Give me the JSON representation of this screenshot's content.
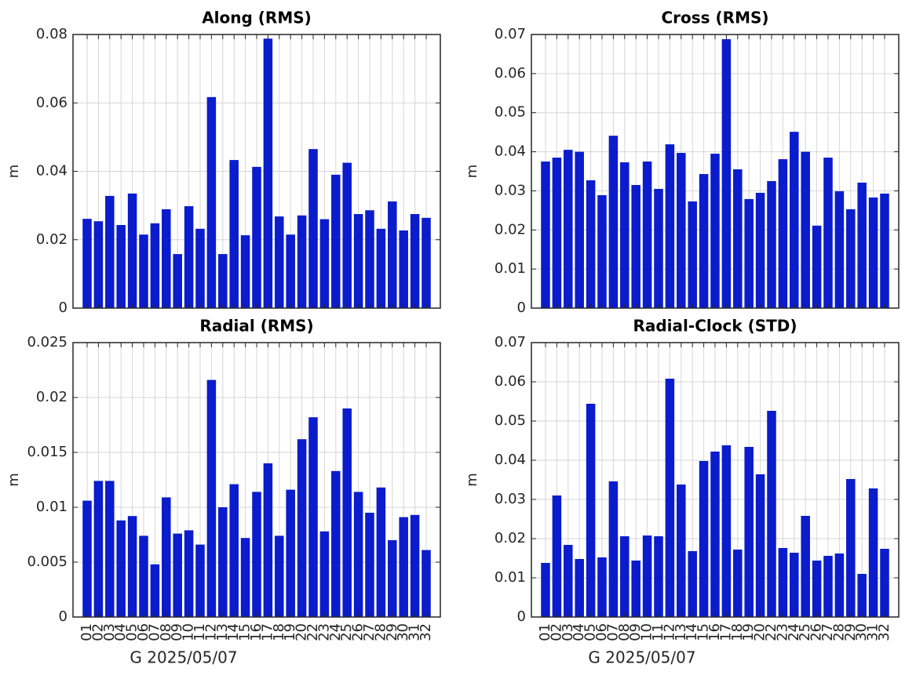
{
  "chart_data": [
    {
      "type": "bar",
      "title": "Along (RMS)",
      "ylabel": "m",
      "color": "#0a1ccc",
      "grid": true,
      "categories": [
        "01",
        "02",
        "03",
        "04",
        "05",
        "06",
        "07",
        "08",
        "09",
        "10",
        "11",
        "12",
        "13",
        "14",
        "15",
        "16",
        "17",
        "18",
        "19",
        "20",
        "22",
        "23",
        "24",
        "25",
        "26",
        "27",
        "28",
        "29",
        "30",
        "31",
        "32"
      ],
      "values": [
        0.0261,
        0.0254,
        0.0328,
        0.0243,
        0.0335,
        0.0215,
        0.0248,
        0.0289,
        0.0158,
        0.0298,
        0.0232,
        0.0617,
        0.0158,
        0.0433,
        0.0213,
        0.0413,
        0.0788,
        0.0268,
        0.0215,
        0.0271,
        0.0465,
        0.026,
        0.039,
        0.0425,
        0.0275,
        0.0286,
        0.0232,
        0.0312,
        0.0227,
        0.0275,
        0.0264
      ],
      "ylim": [
        0,
        0.08
      ],
      "yticks": [
        0,
        0.02,
        0.04,
        0.06,
        0.08
      ]
    },
    {
      "type": "bar",
      "title": "Cross (RMS)",
      "ylabel": "m",
      "color": "#0a1ccc",
      "grid": true,
      "categories": [
        "01",
        "02",
        "03",
        "04",
        "05",
        "06",
        "07",
        "08",
        "09",
        "10",
        "11",
        "12",
        "13",
        "14",
        "15",
        "16",
        "17",
        "18",
        "19",
        "20",
        "22",
        "23",
        "24",
        "25",
        "26",
        "27",
        "28",
        "29",
        "30",
        "31",
        "32"
      ],
      "values": [
        0.0375,
        0.0385,
        0.0405,
        0.04,
        0.0327,
        0.0289,
        0.0441,
        0.0373,
        0.0315,
        0.0375,
        0.0305,
        0.0419,
        0.0397,
        0.0273,
        0.0343,
        0.0395,
        0.0688,
        0.0355,
        0.0279,
        0.0295,
        0.0325,
        0.0381,
        0.0451,
        0.04,
        0.0211,
        0.0385,
        0.0299,
        0.0253,
        0.0321,
        0.0283,
        0.0293
      ],
      "ylim": [
        0,
        0.07
      ],
      "yticks": [
        0,
        0.01,
        0.02,
        0.03,
        0.04,
        0.05,
        0.06,
        0.07
      ]
    },
    {
      "type": "bar",
      "title": "Radial (RMS)",
      "ylabel": "m",
      "xlabel": "G 2025/05/07",
      "color": "#0a1ccc",
      "grid": true,
      "categories": [
        "01",
        "02",
        "03",
        "04",
        "05",
        "06",
        "07",
        "08",
        "09",
        "10",
        "11",
        "12",
        "13",
        "14",
        "15",
        "16",
        "17",
        "18",
        "19",
        "20",
        "22",
        "23",
        "24",
        "25",
        "26",
        "27",
        "28",
        "29",
        "30",
        "31",
        "32"
      ],
      "values": [
        0.0106,
        0.0124,
        0.0124,
        0.0088,
        0.0092,
        0.0074,
        0.0048,
        0.0109,
        0.0076,
        0.0079,
        0.0066,
        0.0216,
        0.01,
        0.0121,
        0.0072,
        0.0114,
        0.014,
        0.0074,
        0.0116,
        0.0162,
        0.0182,
        0.0078,
        0.0133,
        0.019,
        0.0114,
        0.0095,
        0.0118,
        0.007,
        0.0091,
        0.0093,
        0.0061
      ],
      "ylim": [
        0,
        0.025
      ],
      "yticks": [
        0,
        0.005,
        0.01,
        0.015,
        0.02,
        0.025
      ]
    },
    {
      "type": "bar",
      "title": "Radial-Clock (STD)",
      "ylabel": "m",
      "xlabel": "G 2025/05/07",
      "color": "#0a1ccc",
      "grid": true,
      "categories": [
        "01",
        "02",
        "03",
        "04",
        "05",
        "06",
        "07",
        "08",
        "09",
        "10",
        "11",
        "12",
        "13",
        "14",
        "15",
        "16",
        "17",
        "18",
        "19",
        "20",
        "22",
        "23",
        "24",
        "25",
        "26",
        "27",
        "28",
        "29",
        "30",
        "31",
        "32"
      ],
      "values": [
        0.0138,
        0.031,
        0.0184,
        0.0148,
        0.0544,
        0.0152,
        0.0346,
        0.0206,
        0.0144,
        0.0208,
        0.0206,
        0.0608,
        0.0338,
        0.0168,
        0.0398,
        0.0422,
        0.0438,
        0.0172,
        0.0434,
        0.0364,
        0.0526,
        0.0176,
        0.0164,
        0.0258,
        0.0144,
        0.0156,
        0.0162,
        0.0352,
        0.011,
        0.0328,
        0.0174
      ],
      "ylim": [
        0,
        0.07
      ],
      "yticks": [
        0,
        0.01,
        0.02,
        0.03,
        0.04,
        0.05,
        0.06,
        0.07
      ]
    }
  ]
}
